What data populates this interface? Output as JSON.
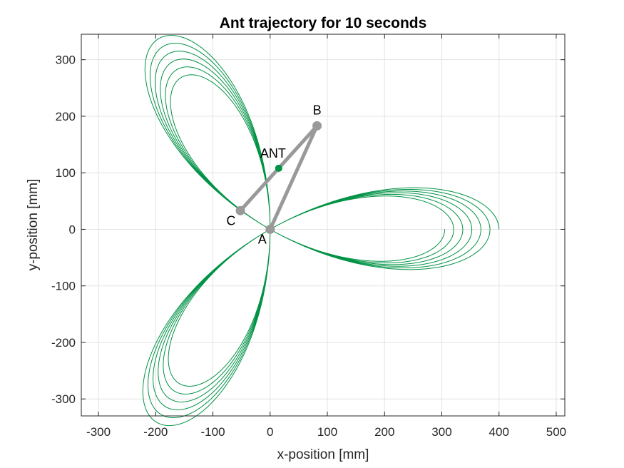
{
  "chart_data": {
    "type": "line",
    "title": "Ant trajectory for 10 seconds",
    "xlabel": "x-position [mm]",
    "ylabel": "y-position [mm]",
    "xlim": [
      -330,
      515
    ],
    "ylim": [
      -330,
      345
    ],
    "xticks": [
      -300,
      -200,
      -100,
      0,
      100,
      200,
      300,
      400,
      500
    ],
    "yticks": [
      -300,
      -200,
      -100,
      0,
      100,
      200,
      300
    ],
    "grid": true,
    "trajectory": {
      "shape": "three-lobed rose spiral",
      "lobes": 3,
      "start_radius": 400,
      "end_radius": 305,
      "turns": 3,
      "color": "#009245"
    },
    "points": [
      {
        "label": "A",
        "x": 0,
        "y": 0
      },
      {
        "label": "B",
        "x": 82,
        "y": 183
      },
      {
        "label": "C",
        "x": -52,
        "y": 33
      },
      {
        "label": "ANT",
        "x": 15,
        "y": 108
      }
    ],
    "links": [
      [
        "A",
        "B"
      ],
      [
        "B",
        "C"
      ]
    ],
    "link_color": "#999999",
    "ant_color": "#009245"
  }
}
